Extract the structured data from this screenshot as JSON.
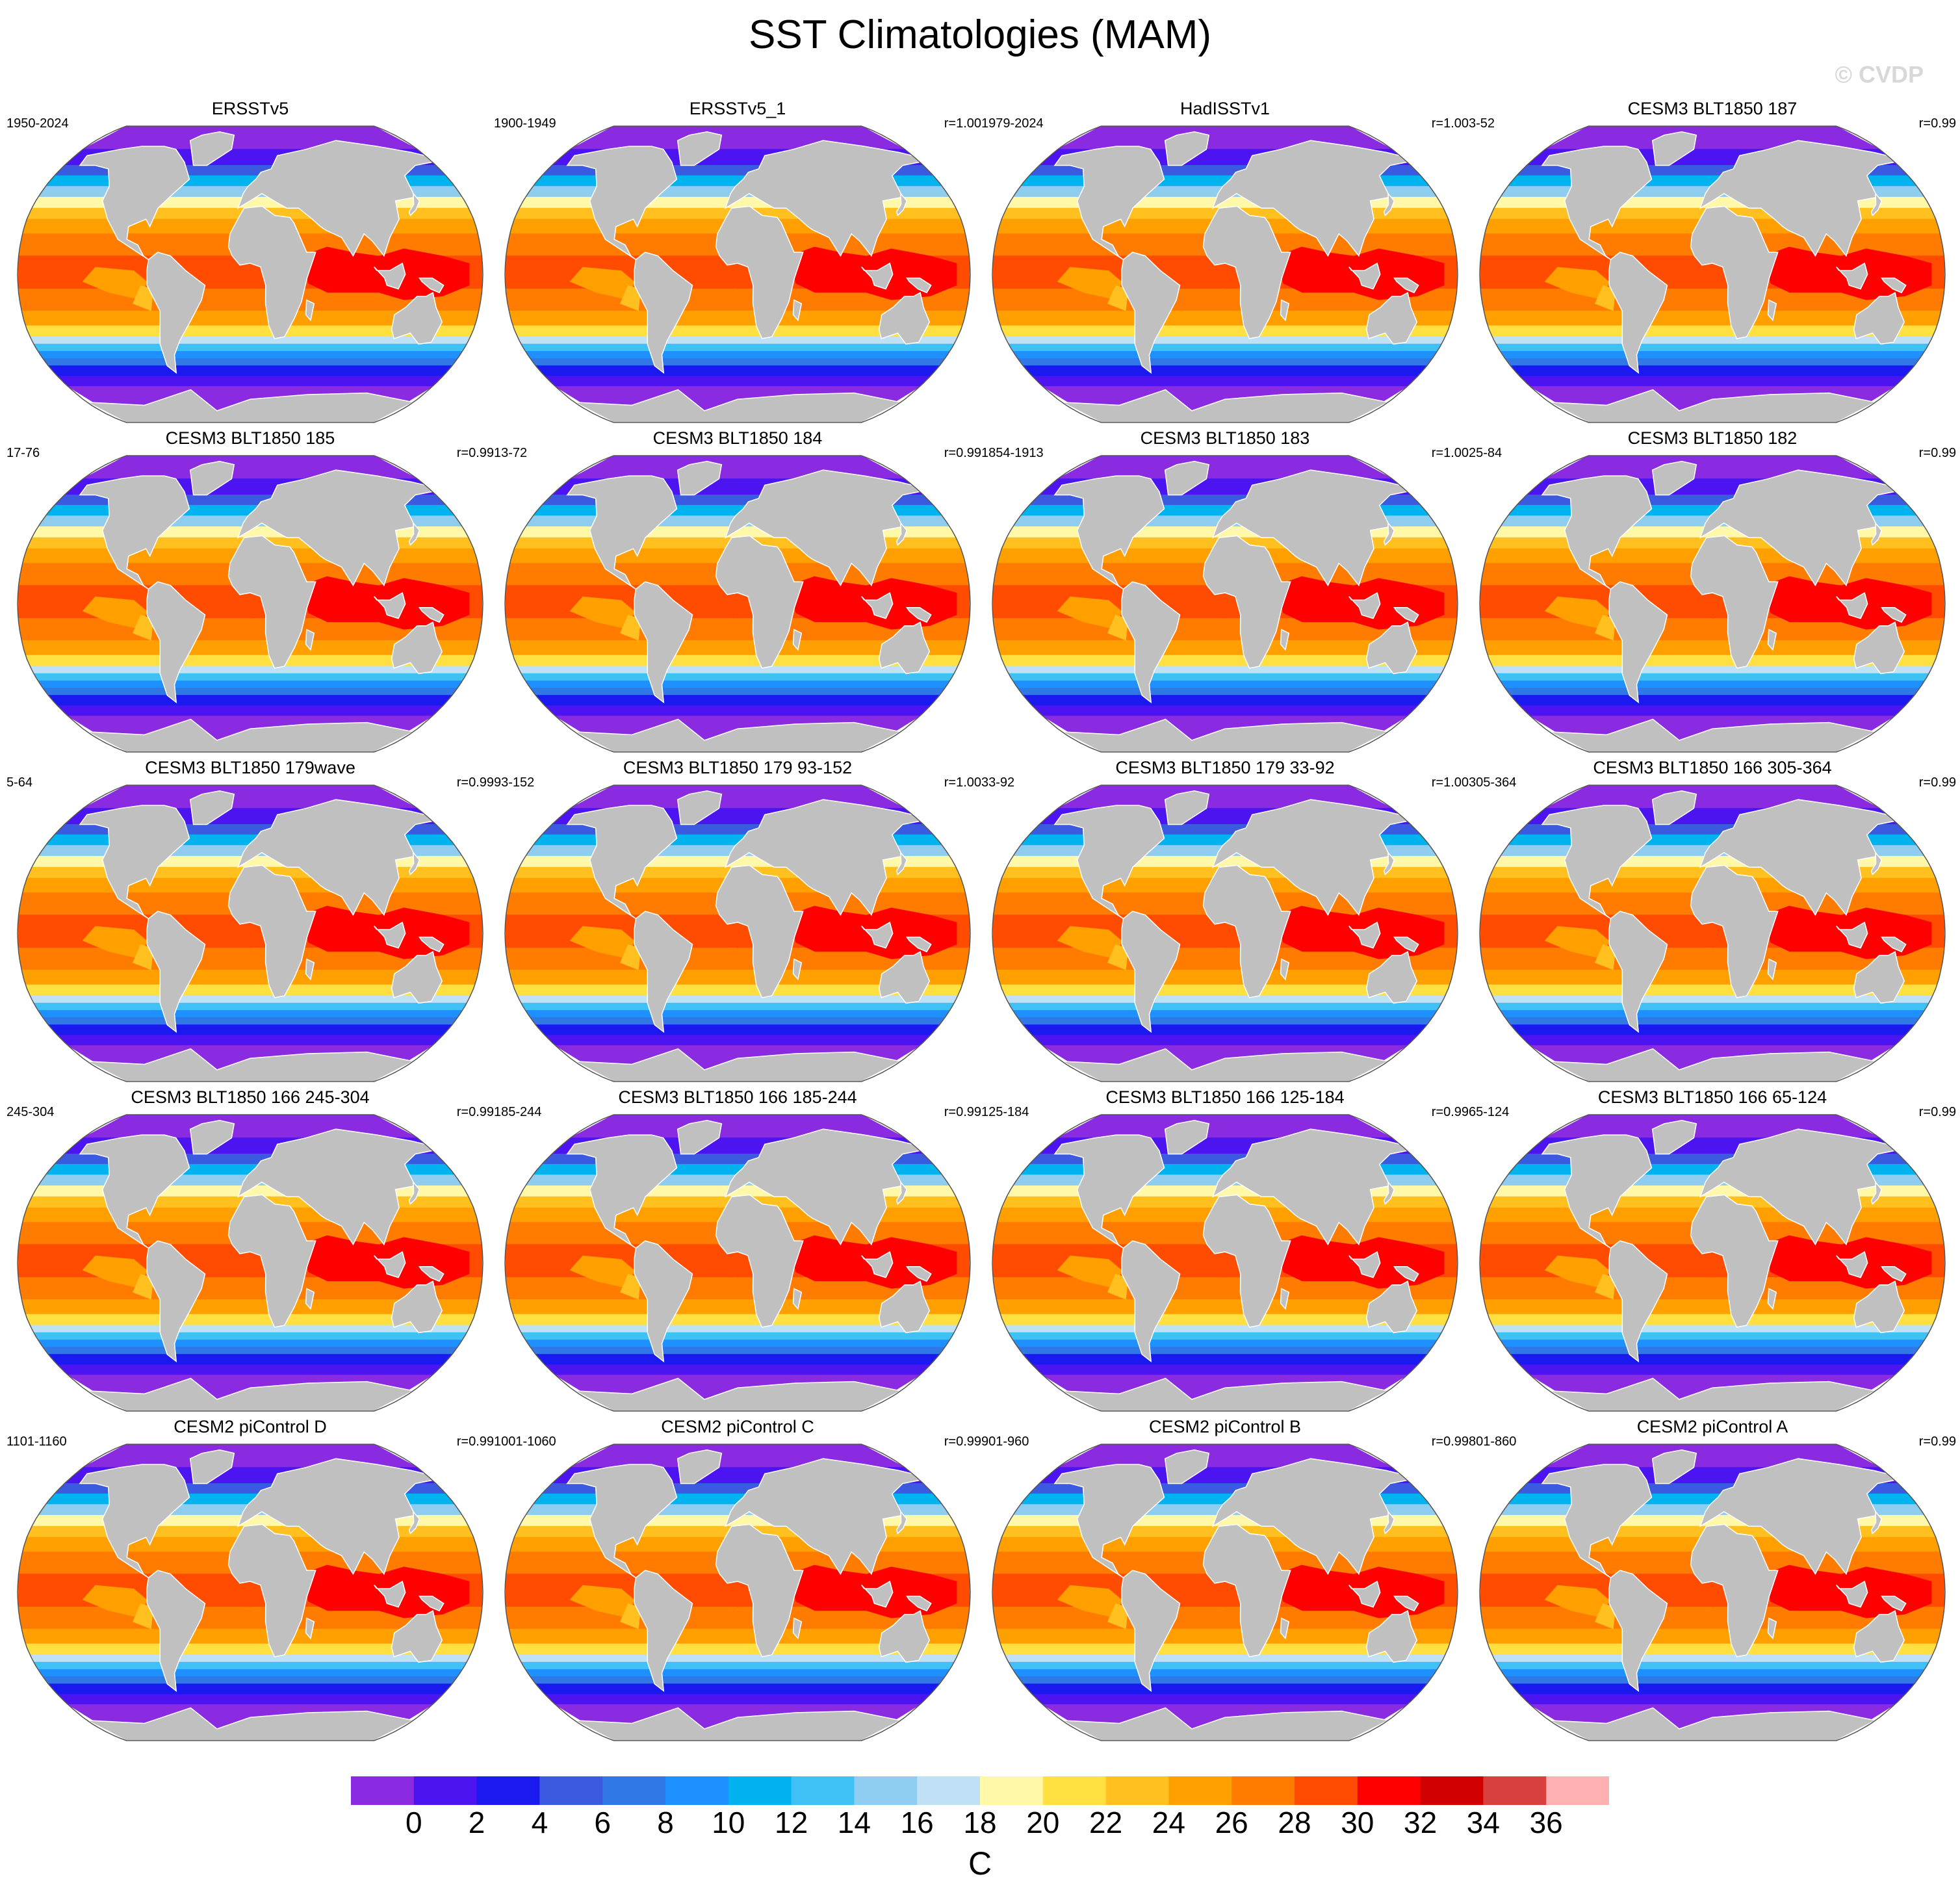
{
  "title": "SST Climatologies (MAM)",
  "watermark": "© CVDP",
  "chart_data": {
    "type": "heatmap",
    "projection": "robinson",
    "layout": {
      "rows": 5,
      "cols": 4
    },
    "land_color": "#c0c0c0",
    "panels": [
      {
        "name": "ERSSTv5",
        "years": "1950-2024",
        "r": ""
      },
      {
        "name": "ERSSTv5_1",
        "years": "1900-1949",
        "r": "r=1.00"
      },
      {
        "name": "HadISSTv1",
        "years": "1979-2024",
        "r": "r=1.00"
      },
      {
        "name": "CESM3 BLT1850 187",
        "years": "3-52",
        "r": "r=0.99"
      },
      {
        "name": "CESM3 BLT1850 185",
        "years": "17-76",
        "r": "r=0.99"
      },
      {
        "name": "CESM3 BLT1850 184",
        "years": "13-72",
        "r": "r=0.99"
      },
      {
        "name": "CESM3 BLT1850 183",
        "years": "1854-1913",
        "r": "r=1.00"
      },
      {
        "name": "CESM3 BLT1850 182",
        "years": "25-84",
        "r": "r=0.99"
      },
      {
        "name": "CESM3 BLT1850 179wave",
        "years": "5-64",
        "r": "r=0.99"
      },
      {
        "name": "CESM3 BLT1850 179 93-152",
        "years": "93-152",
        "r": "r=1.00"
      },
      {
        "name": "CESM3 BLT1850 179 33-92",
        "years": "33-92",
        "r": "r=1.00"
      },
      {
        "name": "CESM3 BLT1850 166 305-364",
        "years": "305-364",
        "r": "r=0.99"
      },
      {
        "name": "CESM3 BLT1850 166 245-304",
        "years": "245-304",
        "r": "r=0.99"
      },
      {
        "name": "CESM3 BLT1850 166 185-244",
        "years": "185-244",
        "r": "r=0.99"
      },
      {
        "name": "CESM3 BLT1850 166 125-184",
        "years": "125-184",
        "r": "r=0.99"
      },
      {
        "name": "CESM3 BLT1850 166 65-124",
        "years": "65-124",
        "r": "r=0.99"
      },
      {
        "name": "CESM2 piControl D",
        "years": "1101-1160",
        "r": "r=0.99"
      },
      {
        "name": "CESM2 piControl C",
        "years": "1001-1060",
        "r": "r=0.99"
      },
      {
        "name": "CESM2 piControl B",
        "years": "901-960",
        "r": "r=0.99"
      },
      {
        "name": "CESM2 piControl A",
        "years": "801-860",
        "r": "r=0.99"
      }
    ],
    "colorbar": {
      "unit": "C",
      "levels": [
        0,
        2,
        4,
        6,
        8,
        10,
        12,
        14,
        16,
        18,
        20,
        22,
        24,
        26,
        28,
        30,
        32,
        34,
        36
      ],
      "tick_labels": [
        "0",
        "2",
        "4",
        "6",
        "8",
        "10",
        "12",
        "14",
        "16",
        "18",
        "20",
        "22",
        "24",
        "26",
        "28",
        "30",
        "32",
        "34",
        "36"
      ],
      "colors": [
        "#8a2be2",
        "#4b14f0",
        "#1a1af0",
        "#3c5ae0",
        "#2f78e6",
        "#1e90ff",
        "#00b2ee",
        "#3fc1f5",
        "#8ecdef",
        "#bfe0f5",
        "#fff8a8",
        "#ffe040",
        "#ffc020",
        "#ffa000",
        "#ff7c00",
        "#ff4c00",
        "#ff0000",
        "#d00000",
        "#d84040",
        "#ffb0b0"
      ]
    }
  }
}
